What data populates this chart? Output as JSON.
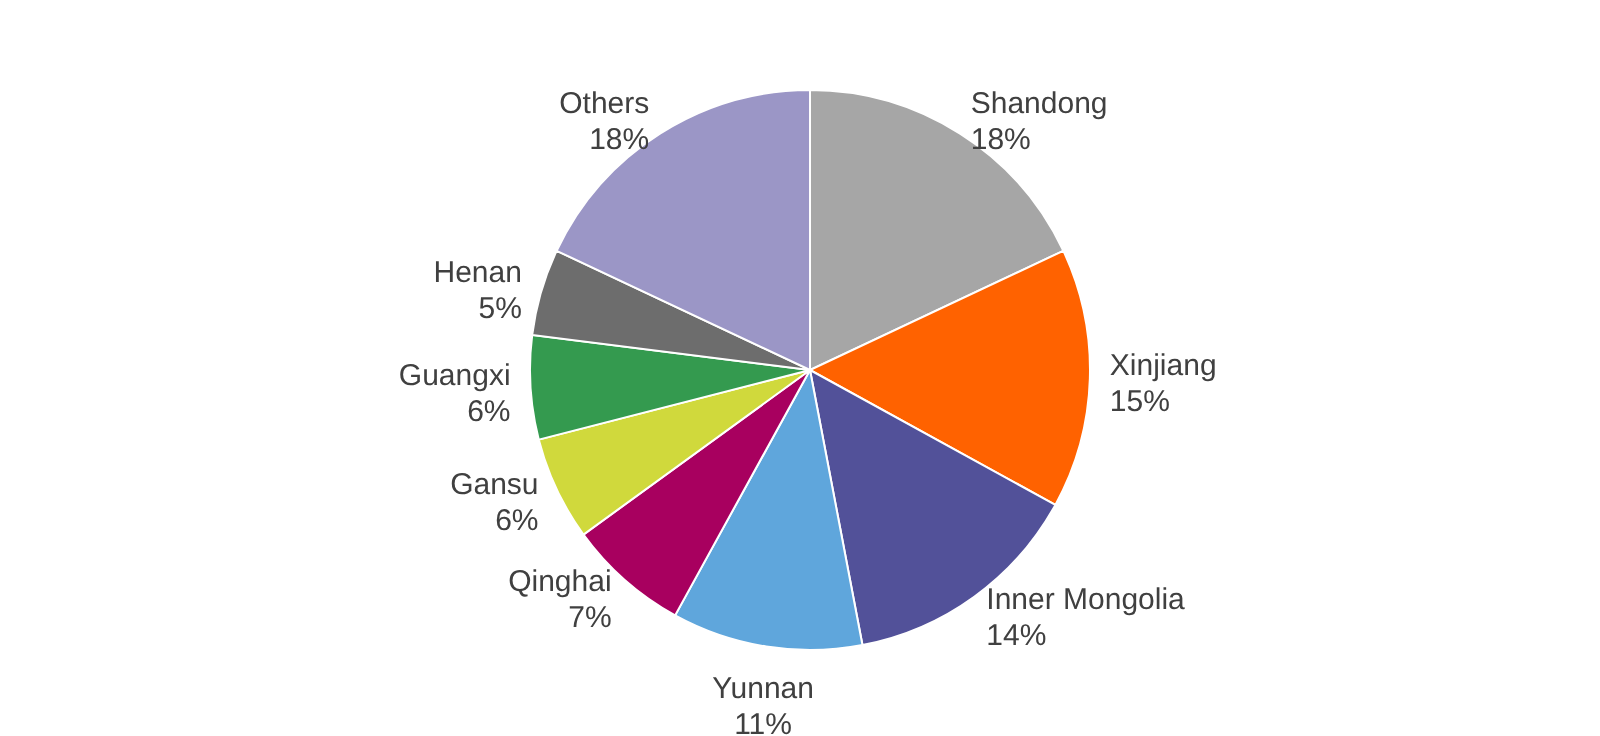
{
  "chart_data": {
    "type": "pie",
    "categories": [
      "Shandong",
      "Xinjiang",
      "Inner Mongolia",
      "Yunnan",
      "Qinghai",
      "Gansu",
      "Guangxi",
      "Henan",
      "Others"
    ],
    "values": [
      18,
      15,
      14,
      11,
      7,
      6,
      6,
      5,
      18
    ],
    "value_labels": [
      "18%",
      "15%",
      "14%",
      "11%",
      "7%",
      "6%",
      "6%",
      "5%",
      "18%"
    ],
    "colors": [
      "#a6a6a6",
      "#ff6200",
      "#525199",
      "#5fa6dc",
      "#a8005f",
      "#d0d93c",
      "#349a4f",
      "#6d6d6d",
      "#9b96c6"
    ],
    "legend": false
  }
}
